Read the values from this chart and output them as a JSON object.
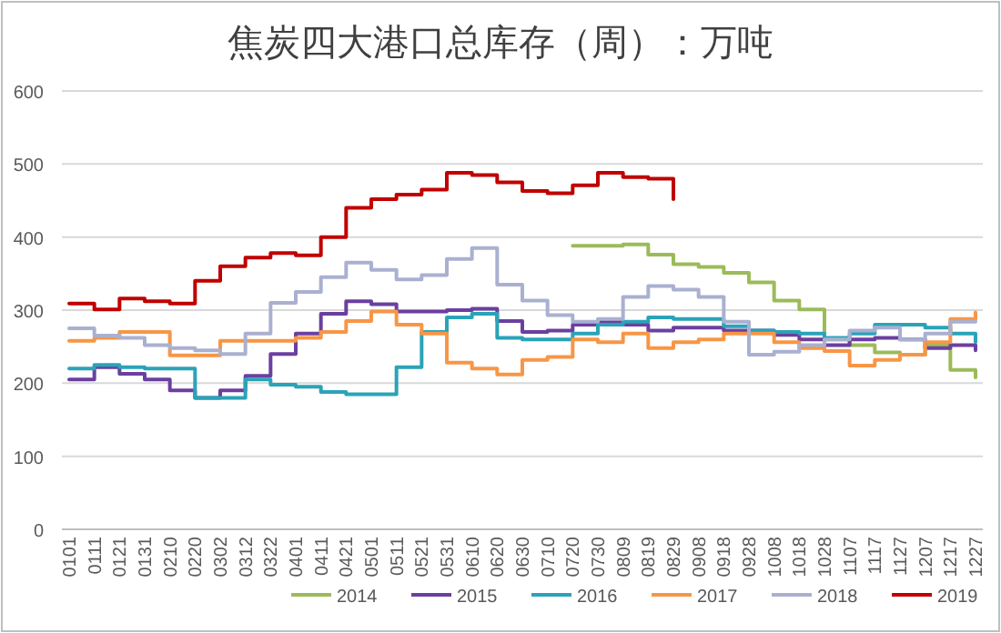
{
  "chart_data": {
    "type": "step",
    "title": "焦炭四大港口总库存（周）：万吨",
    "categories": [
      "0101",
      "0111",
      "0121",
      "0131",
      "0210",
      "0220",
      "0302",
      "0312",
      "0322",
      "0401",
      "0411",
      "0421",
      "0501",
      "0511",
      "0521",
      "0531",
      "0610",
      "0620",
      "0630",
      "0710",
      "0720",
      "0730",
      "0809",
      "0819",
      "0829",
      "0908",
      "0918",
      "0928",
      "1008",
      "1018",
      "1028",
      "1107",
      "1117",
      "1127",
      "1207",
      "1217",
      "1227"
    ],
    "series": [
      {
        "name": "2014",
        "color": "#9bbb59",
        "values": [
          null,
          null,
          null,
          null,
          null,
          null,
          null,
          null,
          null,
          null,
          null,
          null,
          null,
          null,
          null,
          null,
          null,
          null,
          null,
          null,
          388,
          388,
          390,
          376,
          363,
          359,
          351,
          338,
          313,
          301,
          260,
          252,
          242,
          239,
          252,
          218,
          208
        ]
      },
      {
        "name": "2015",
        "color": "#6b3fa0",
        "values": [
          205,
          222,
          213,
          205,
          190,
          180,
          190,
          210,
          240,
          268,
          295,
          312,
          308,
          298,
          298,
          300,
          302,
          285,
          270,
          272,
          280,
          284,
          280,
          272,
          276,
          276,
          272,
          272,
          266,
          260,
          252,
          260,
          262,
          260,
          248,
          252,
          245
        ]
      },
      {
        "name": "2016",
        "color": "#2aa3b8",
        "values": [
          220,
          225,
          222,
          220,
          220,
          180,
          180,
          205,
          198,
          195,
          188,
          185,
          185,
          222,
          270,
          290,
          295,
          262,
          260,
          260,
          268,
          280,
          284,
          290,
          288,
          288,
          278,
          272,
          270,
          268,
          262,
          268,
          280,
          280,
          276,
          268,
          256
        ]
      },
      {
        "name": "2017",
        "color": "#f79646",
        "values": [
          258,
          262,
          270,
          270,
          238,
          238,
          258,
          258,
          258,
          262,
          270,
          285,
          298,
          280,
          268,
          228,
          220,
          212,
          232,
          236,
          260,
          256,
          268,
          248,
          256,
          260,
          268,
          268,
          256,
          248,
          244,
          224,
          232,
          239,
          256,
          288,
          297
        ]
      },
      {
        "name": "2018",
        "color": "#aab0d0",
        "values": [
          275,
          265,
          262,
          252,
          248,
          245,
          240,
          268,
          310,
          325,
          345,
          365,
          355,
          342,
          348,
          370,
          385,
          335,
          313,
          293,
          284,
          288,
          318,
          333,
          328,
          318,
          284,
          239,
          243,
          252,
          260,
          272,
          276,
          260,
          268,
          284,
          285
        ]
      },
      {
        "name": "2019",
        "color": "#c00000",
        "values": [
          309,
          301,
          316,
          312,
          309,
          340,
          360,
          372,
          378,
          375,
          400,
          440,
          452,
          458,
          465,
          488,
          485,
          475,
          463,
          460,
          471,
          488,
          482,
          480,
          452,
          null,
          null,
          null,
          null,
          null,
          null,
          null,
          null,
          null,
          null,
          null,
          null
        ]
      }
    ],
    "ylim": [
      0,
      600
    ],
    "yticks": [
      0,
      100,
      200,
      300,
      400,
      500,
      600
    ],
    "grid": "y",
    "legend": "bottom"
  }
}
